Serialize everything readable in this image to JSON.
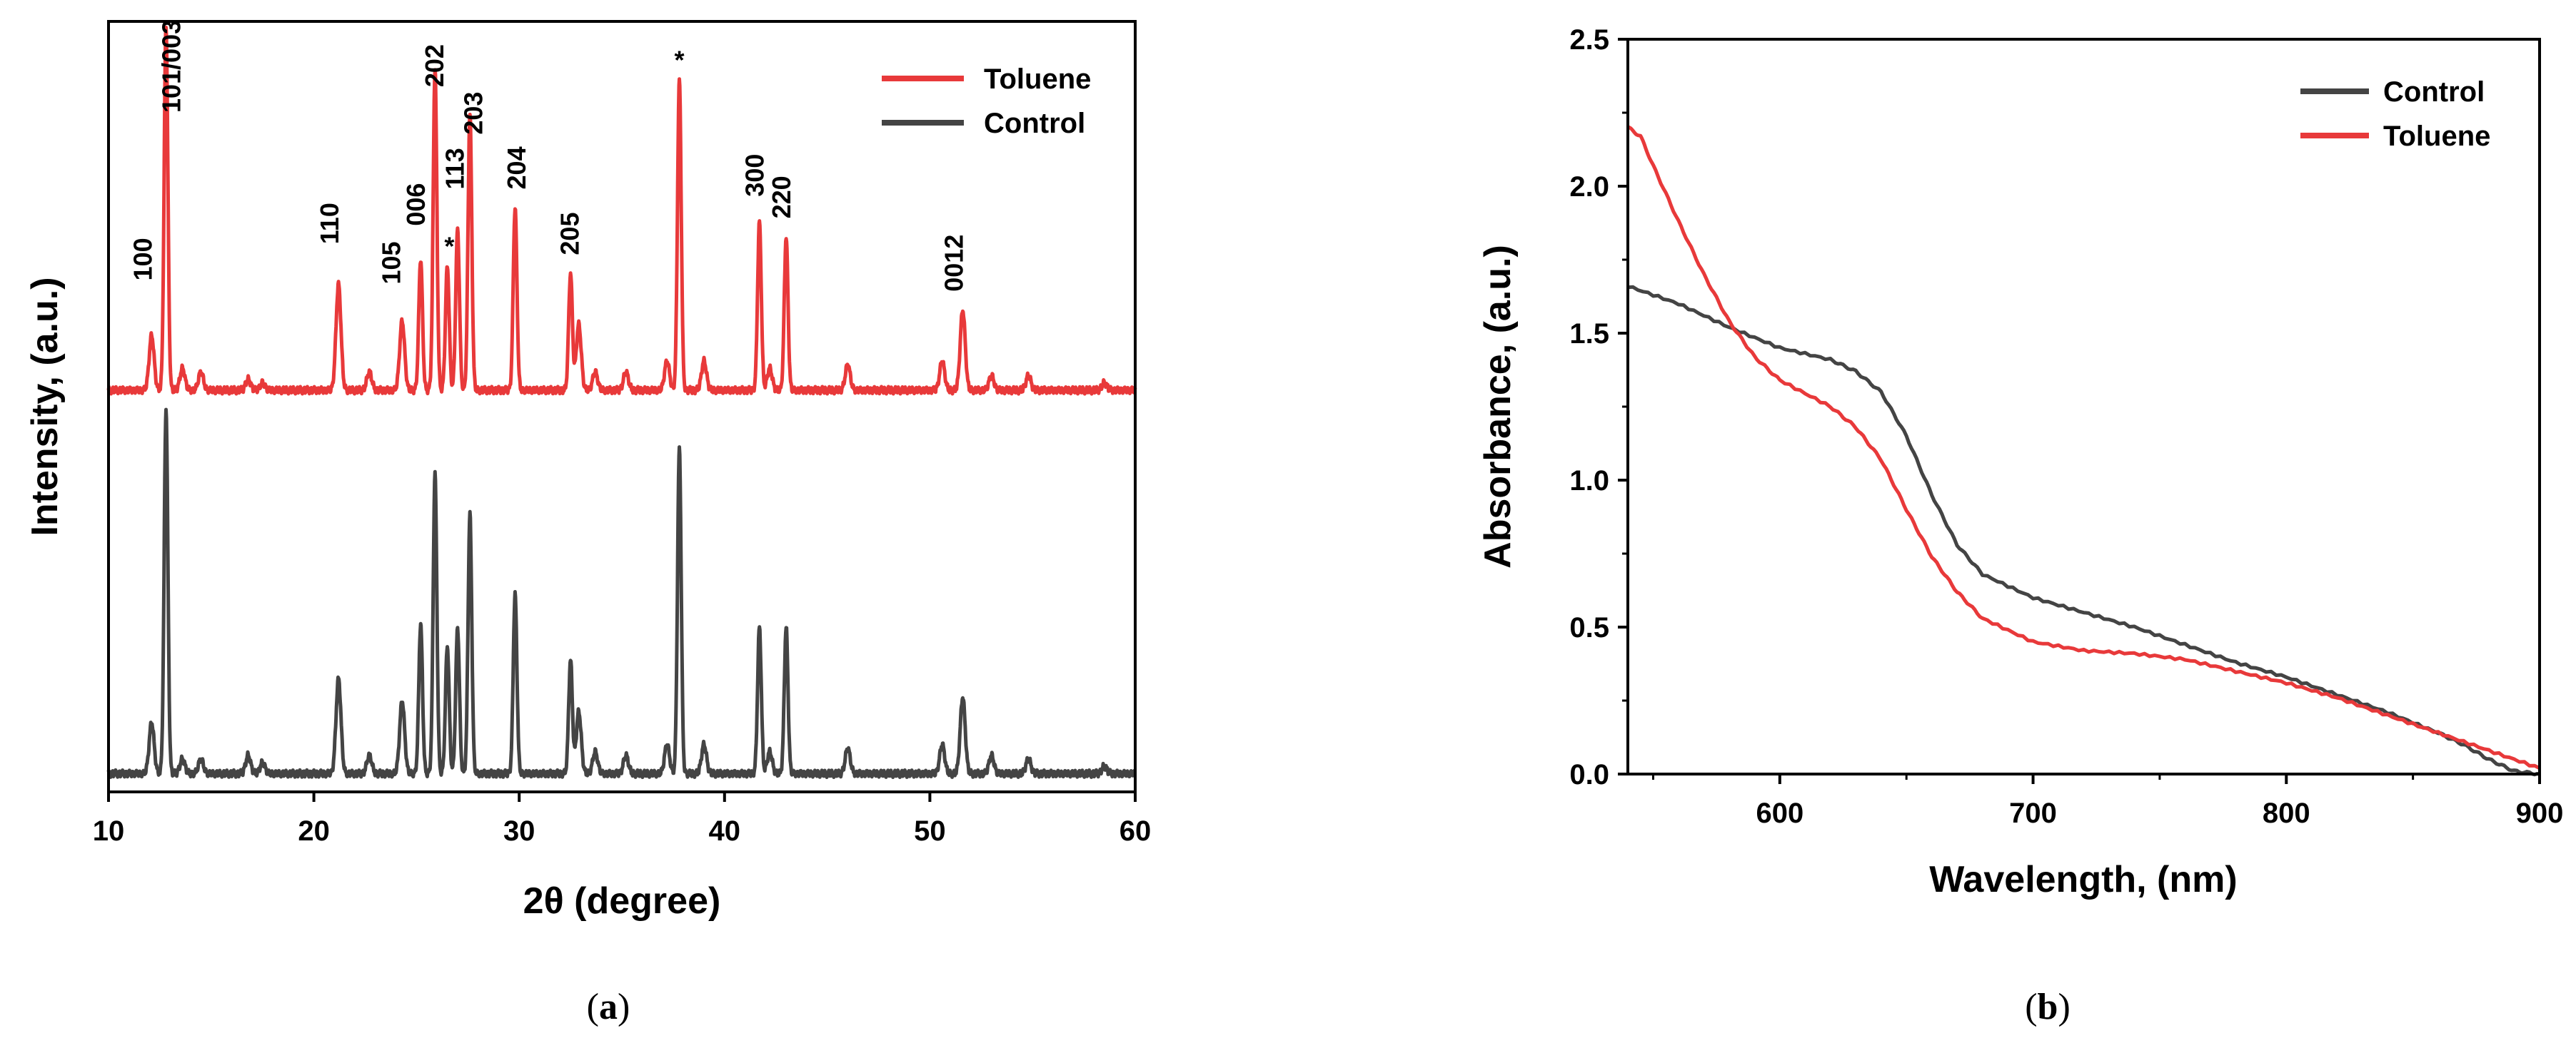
{
  "figure_captions": {
    "a_open": "(",
    "a_letter": "a",
    "a_close": ")",
    "b_open": "(",
    "b_letter": "b",
    "b_close": ")"
  },
  "colors": {
    "toluene": "#e8393a",
    "control": "#444444",
    "axis": "#000000"
  },
  "chart_data": [
    {
      "id": "a",
      "type": "line",
      "title": "",
      "xlabel": "2θ (degree)",
      "ylabel": "Intensity, (a.u.)",
      "xlim": [
        10,
        60
      ],
      "xticks": [
        10,
        20,
        30,
        40,
        50,
        60
      ],
      "yticks_shown": false,
      "legend_position": "top-right",
      "legend": [
        "Toluene",
        "Control"
      ],
      "series": [
        {
          "name": "Toluene",
          "color": "#e8393a",
          "offset": 1.05,
          "baseline": 0.0,
          "peaks": [
            {
              "x": 12.1,
              "h": 0.15
            },
            {
              "x": 12.8,
              "h": 1.0
            },
            {
              "x": 13.6,
              "h": 0.06
            },
            {
              "x": 14.5,
              "h": 0.05
            },
            {
              "x": 16.8,
              "h": 0.03
            },
            {
              "x": 17.5,
              "h": 0.02
            },
            {
              "x": 21.2,
              "h": 0.29
            },
            {
              "x": 22.7,
              "h": 0.05
            },
            {
              "x": 24.3,
              "h": 0.19
            },
            {
              "x": 25.2,
              "h": 0.36
            },
            {
              "x": 25.9,
              "h": 0.88
            },
            {
              "x": 26.5,
              "h": 0.34
            },
            {
              "x": 27.0,
              "h": 0.44
            },
            {
              "x": 27.6,
              "h": 0.76
            },
            {
              "x": 29.8,
              "h": 0.5
            },
            {
              "x": 32.5,
              "h": 0.32
            },
            {
              "x": 32.9,
              "h": 0.18
            },
            {
              "x": 33.7,
              "h": 0.05
            },
            {
              "x": 35.2,
              "h": 0.05
            },
            {
              "x": 37.2,
              "h": 0.08
            },
            {
              "x": 37.8,
              "h": 0.85
            },
            {
              "x": 39.0,
              "h": 0.08
            },
            {
              "x": 41.7,
              "h": 0.46
            },
            {
              "x": 42.2,
              "h": 0.06
            },
            {
              "x": 43.0,
              "h": 0.42
            },
            {
              "x": 46.0,
              "h": 0.07
            },
            {
              "x": 50.6,
              "h": 0.08
            },
            {
              "x": 51.6,
              "h": 0.22
            },
            {
              "x": 53.0,
              "h": 0.04
            },
            {
              "x": 54.8,
              "h": 0.04
            },
            {
              "x": 58.5,
              "h": 0.02
            }
          ]
        },
        {
          "name": "Control",
          "color": "#444444",
          "offset": 0.0,
          "baseline": 0.0,
          "peaks": [
            {
              "x": 12.1,
              "h": 0.14
            },
            {
              "x": 12.8,
              "h": 1.0
            },
            {
              "x": 13.6,
              "h": 0.04
            },
            {
              "x": 14.5,
              "h": 0.04
            },
            {
              "x": 16.8,
              "h": 0.05
            },
            {
              "x": 17.5,
              "h": 0.03
            },
            {
              "x": 21.2,
              "h": 0.26
            },
            {
              "x": 22.7,
              "h": 0.05
            },
            {
              "x": 24.3,
              "h": 0.2
            },
            {
              "x": 25.2,
              "h": 0.41
            },
            {
              "x": 25.9,
              "h": 0.82
            },
            {
              "x": 26.5,
              "h": 0.35
            },
            {
              "x": 27.0,
              "h": 0.4
            },
            {
              "x": 27.6,
              "h": 0.71
            },
            {
              "x": 29.8,
              "h": 0.49
            },
            {
              "x": 32.5,
              "h": 0.31
            },
            {
              "x": 32.9,
              "h": 0.17
            },
            {
              "x": 33.7,
              "h": 0.06
            },
            {
              "x": 35.2,
              "h": 0.05
            },
            {
              "x": 37.2,
              "h": 0.08
            },
            {
              "x": 37.8,
              "h": 0.89
            },
            {
              "x": 39.0,
              "h": 0.08
            },
            {
              "x": 41.7,
              "h": 0.4
            },
            {
              "x": 42.2,
              "h": 0.06
            },
            {
              "x": 43.0,
              "h": 0.4
            },
            {
              "x": 46.0,
              "h": 0.07
            },
            {
              "x": 50.6,
              "h": 0.08
            },
            {
              "x": 51.6,
              "h": 0.21
            },
            {
              "x": 53.0,
              "h": 0.05
            },
            {
              "x": 54.8,
              "h": 0.04
            },
            {
              "x": 58.5,
              "h": 0.02
            }
          ]
        }
      ],
      "annotations": [
        {
          "text": "100",
          "x": 12.1,
          "y": 1.35
        },
        {
          "text": "101/003",
          "x": 13.5,
          "y": 1.81
        },
        {
          "text": "110",
          "x": 21.2,
          "y": 1.45
        },
        {
          "text": "105",
          "x": 24.2,
          "y": 1.34
        },
        {
          "text": "006",
          "x": 25.4,
          "y": 1.5
        },
        {
          "text": "*",
          "x": 26.6,
          "y": 1.42
        },
        {
          "text": "202",
          "x": 26.3,
          "y": 1.88
        },
        {
          "text": "113",
          "x": 27.3,
          "y": 1.6
        },
        {
          "text": "203",
          "x": 28.2,
          "y": 1.75
        },
        {
          "text": "204",
          "x": 30.3,
          "y": 1.6
        },
        {
          "text": "205",
          "x": 32.9,
          "y": 1.42
        },
        {
          "text": "*",
          "x": 37.8,
          "y": 1.93
        },
        {
          "text": "300",
          "x": 41.9,
          "y": 1.58
        },
        {
          "text": "220",
          "x": 43.2,
          "y": 1.52
        },
        {
          "text": "0012",
          "x": 51.6,
          "y": 1.32
        }
      ]
    },
    {
      "id": "b",
      "type": "line",
      "title": "",
      "xlabel": "Wavelength, (nm)",
      "ylabel": "Absorbance, (a.u.)",
      "xlim": [
        540,
        900
      ],
      "ylim": [
        0.0,
        2.5
      ],
      "xticks": [
        600,
        700,
        800,
        900
      ],
      "yticks": [
        0.0,
        0.5,
        1.0,
        1.5,
        2.0,
        2.5
      ],
      "ytick_labels": [
        "0.0",
        "0.5",
        "1.0",
        "1.5",
        "2.0",
        "2.5"
      ],
      "legend_position": "top-right",
      "legend": [
        "Control",
        "Toluene"
      ],
      "series": [
        {
          "name": "Control",
          "color": "#444444",
          "x": [
            540,
            560,
            580,
            600,
            620,
            630,
            640,
            650,
            660,
            670,
            680,
            700,
            720,
            740,
            760,
            780,
            800,
            820,
            840,
            860,
            870,
            880,
            890,
            900
          ],
          "y": [
            1.66,
            1.6,
            1.52,
            1.45,
            1.41,
            1.37,
            1.3,
            1.15,
            0.95,
            0.78,
            0.68,
            0.6,
            0.55,
            0.5,
            0.44,
            0.38,
            0.33,
            0.27,
            0.21,
            0.14,
            0.1,
            0.05,
            0.01,
            0.0
          ]
        },
        {
          "name": "Toluene",
          "color": "#e8393a",
          "x": [
            540,
            545,
            550,
            560,
            570,
            580,
            590,
            600,
            620,
            630,
            640,
            650,
            660,
            670,
            680,
            700,
            720,
            740,
            760,
            780,
            800,
            820,
            840,
            860,
            880,
            900
          ],
          "y": [
            2.2,
            2.17,
            2.07,
            1.88,
            1.7,
            1.54,
            1.42,
            1.34,
            1.25,
            1.18,
            1.07,
            0.9,
            0.74,
            0.62,
            0.53,
            0.45,
            0.42,
            0.41,
            0.39,
            0.35,
            0.31,
            0.26,
            0.2,
            0.14,
            0.08,
            0.02
          ]
        }
      ]
    }
  ]
}
